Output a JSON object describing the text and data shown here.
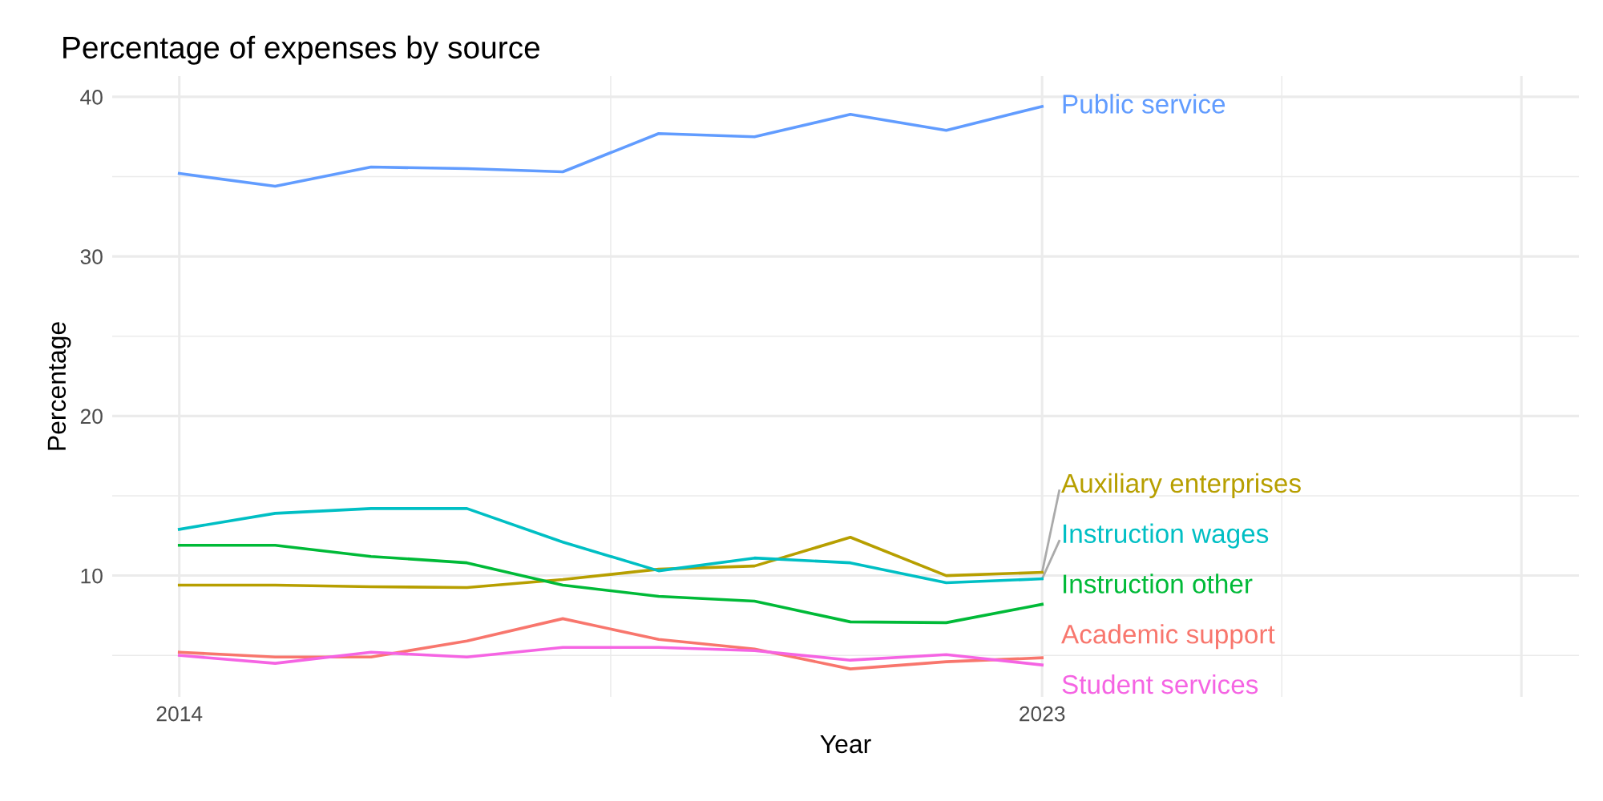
{
  "chart_data": {
    "type": "line",
    "title": "Percentage of expenses by source",
    "xlabel": "Year",
    "ylabel": "Percentage",
    "x": [
      2014,
      2015,
      2016,
      2017,
      2018,
      2019,
      2020,
      2021,
      2022,
      2023
    ],
    "series": [
      {
        "name": "Public service",
        "color": "#619cff",
        "values": [
          35.2,
          34.4,
          35.6,
          35.5,
          35.3,
          37.7,
          37.5,
          38.9,
          37.9,
          39.4
        ]
      },
      {
        "name": "Auxiliary enterprises",
        "color": "#b79f00",
        "values": [
          9.4,
          9.4,
          9.3,
          9.25,
          9.75,
          10.4,
          10.6,
          12.4,
          10.0,
          10.2
        ]
      },
      {
        "name": "Instruction wages",
        "color": "#00bfc4",
        "values": [
          12.9,
          13.9,
          14.2,
          14.2,
          12.1,
          10.3,
          11.1,
          10.8,
          9.55,
          9.8
        ]
      },
      {
        "name": "Instruction other",
        "color": "#00ba38",
        "values": [
          11.9,
          11.9,
          11.2,
          10.8,
          9.4,
          8.7,
          8.4,
          7.1,
          7.05,
          8.2
        ]
      },
      {
        "name": "Academic support",
        "color": "#f8766d",
        "values": [
          5.2,
          4.9,
          4.9,
          5.9,
          7.3,
          6.0,
          5.4,
          4.15,
          4.6,
          4.85
        ]
      },
      {
        "name": "Student services",
        "color": "#f564e3",
        "values": [
          5.0,
          4.5,
          5.2,
          4.9,
          5.5,
          5.5,
          5.3,
          4.7,
          5.05,
          4.4
        ]
      }
    ],
    "xlim": [
      2013.3,
      2028.6
    ],
    "ylim": [
      2.4,
      41.3
    ],
    "xticks": [
      2014,
      2023,
      {
        "value": 2028,
        "label": null
      }
    ],
    "yticks": [
      10,
      20,
      30,
      40
    ],
    "grid": true,
    "legend": false,
    "marker": "none",
    "line_style": "solid"
  }
}
